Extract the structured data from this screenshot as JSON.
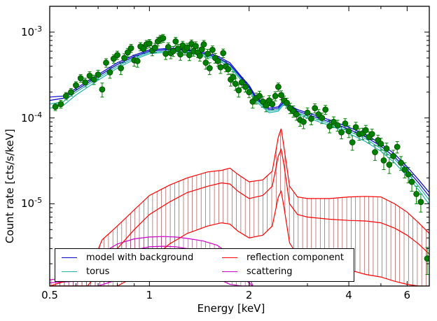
{
  "chart_data": {
    "type": "line",
    "xlabel": "Energy [keV]",
    "ylabel": "Count rate [cts/s/keV]",
    "xscale": "log",
    "yscale": "log",
    "xlim": [
      0.5,
      7.0
    ],
    "ylim": [
      1.1e-06,
      0.002
    ],
    "xticks": [
      0.5,
      1,
      2,
      4,
      6
    ],
    "xtick_labels": [
      "0.5",
      "1",
      "2",
      "4",
      "6"
    ],
    "yticks": [
      1e-05,
      0.0001,
      0.001
    ],
    "ytick_labels": [
      "10-5",
      "10-4",
      "10-3"
    ],
    "grid": false,
    "legend_position": "bottom-left",
    "series": [
      {
        "name": "model with background",
        "color": "#0000cc",
        "x": [
          0.5,
          0.55,
          0.6,
          0.7,
          0.8,
          0.9,
          1.0,
          1.1,
          1.2,
          1.4,
          1.6,
          1.75,
          1.9,
          2.0,
          2.1,
          2.3,
          2.45,
          2.55,
          2.65,
          2.8,
          3.0,
          3.5,
          4.0,
          4.5,
          5.0,
          5.5,
          6.0,
          6.5,
          7.0
        ],
        "bands": [
          [
            0.000175,
            0.00018,
            0.00022,
            0.00032,
            0.00044,
            0.00054,
            0.00062,
            0.00064,
            0.00065,
            0.00061,
            0.00053,
            0.00044,
            0.0003,
            0.00024,
            0.000175,
            0.00013,
            0.000135,
            0.000165,
            0.00014,
            0.000125,
            0.000115,
            9.5e-05,
            7.8e-05,
            6.4e-05,
            5e-05,
            3.8e-05,
            2.7e-05,
            1.9e-05,
            1.35e-05
          ],
          [
            0.00016,
            0.00017,
            0.00021,
            0.000305,
            0.00042,
            0.00052,
            0.0006,
            0.00062,
            0.00063,
            0.00059,
            0.00051,
            0.00042,
            0.00029,
            0.00023,
            0.000168,
            0.000125,
            0.00013,
            0.000155,
            0.000133,
            0.00012,
            0.00011,
            9e-05,
            7.4e-05,
            6e-05,
            4.7e-05,
            3.5e-05,
            2.5e-05,
            1.75e-05,
            1.22e-05
          ]
        ]
      },
      {
        "name": "torus",
        "color": "#20b2aa",
        "x": [
          0.5,
          0.55,
          0.6,
          0.7,
          0.8,
          0.9,
          1.0,
          1.1,
          1.2,
          1.4,
          1.6,
          1.75,
          1.9,
          2.0,
          2.1,
          2.3,
          2.45,
          2.55,
          2.65,
          2.8,
          3.0,
          3.5,
          4.0,
          4.5,
          5.0,
          5.5,
          6.0,
          6.5,
          7.0
        ],
        "bands": [
          [
            0.000145,
            0.000155,
            0.0002,
            0.00029,
            0.0004,
            0.0005,
            0.00058,
            0.0006,
            0.00061,
            0.00057,
            0.0005,
            0.00041,
            0.00028,
            0.00022,
            0.000162,
            0.00012,
            0.000125,
            0.00015,
            0.000128,
            0.000115,
            0.000105,
            8.6e-05,
            7e-05,
            5.7e-05,
            4.4e-05,
            3.3e-05,
            2.3e-05,
            1.6e-05,
            1.1e-05
          ],
          [
            0.00013,
            0.00014,
            0.000185,
            0.000275,
            0.00038,
            0.00048,
            0.00056,
            0.00058,
            0.00059,
            0.00055,
            0.00048,
            0.00039,
            0.00027,
            0.00021,
            0.000155,
            0.000115,
            0.00012,
            0.000145,
            0.000122,
            0.00011,
            0.0001,
            8.2e-05,
            6.6e-05,
            5.3e-05,
            4.1e-05,
            3e-05,
            2.1e-05,
            1.45e-05,
            9.8e-06
          ]
        ]
      },
      {
        "name": "reflection component",
        "color": "#ff0000",
        "x": [
          0.5,
          0.65,
          0.72,
          0.8,
          0.9,
          1.0,
          1.15,
          1.3,
          1.5,
          1.65,
          1.75,
          1.85,
          2.0,
          2.2,
          2.35,
          2.45,
          2.5,
          2.55,
          2.65,
          2.8,
          3.0,
          3.5,
          4.0,
          4.5,
          5.0,
          5.5,
          6.0,
          6.5,
          7.0
        ],
        "bands": [
          [
            1.1e-06,
            1.5e-06,
            3.8e-06,
            5.5e-06,
            8.5e-06,
            1.25e-05,
            1.65e-05,
            2e-05,
            2.35e-05,
            2.45e-05,
            2.6e-05,
            2.2e-05,
            1.8e-05,
            1.9e-05,
            2.4e-05,
            6e-05,
            7.5e-05,
            4.5e-05,
            1.6e-05,
            1.2e-05,
            1.15e-05,
            1.15e-05,
            1.2e-05,
            1.22e-05,
            1.2e-05,
            1e-05,
            8e-06,
            6e-06,
            4.5e-06
          ],
          [
            1.1e-06,
            1.1e-06,
            1.8e-06,
            3e-06,
            5e-06,
            7.5e-06,
            1.05e-05,
            1.35e-05,
            1.6e-05,
            1.75e-05,
            1.7e-05,
            1.4e-05,
            1.15e-05,
            1.25e-05,
            1.6e-05,
            3.6e-05,
            4.3e-05,
            2.8e-05,
            1e-05,
            7.5e-06,
            7e-06,
            6.6e-06,
            6.4e-06,
            6.3e-06,
            6e-06,
            5.2e-06,
            4.3e-06,
            3.4e-06,
            2.6e-06
          ],
          [
            1.1e-06,
            1.1e-06,
            1.1e-06,
            1.1e-06,
            1.4e-06,
            2.2e-06,
            3.4e-06,
            4.5e-06,
            5.5e-06,
            6e-06,
            5.8e-06,
            4.8e-06,
            4e-06,
            4.3e-06,
            5.5e-06,
            1.2e-05,
            1.4e-05,
            9e-06,
            3.5e-06,
            2.5e-06,
            2.2e-06,
            1.9e-06,
            1.7e-06,
            1.5e-06,
            1.4e-06,
            1.25e-06,
            1.15e-06,
            1.1e-06,
            1.1e-06
          ]
        ]
      },
      {
        "name": "scattering",
        "color": "#cc00cc",
        "x": [
          0.5,
          0.6,
          0.7,
          0.8,
          0.9,
          1.0,
          1.1,
          1.2,
          1.3,
          1.45,
          1.6,
          1.75,
          1.9,
          2.0,
          2.05
        ],
        "bands": [
          [
            1.3e-06,
            1.4e-06,
            2.5e-06,
            3.4e-06,
            3.9e-06,
            4.1e-06,
            4.15e-06,
            4.1e-06,
            3.95e-06,
            3.7e-06,
            3.3e-06,
            2.6e-06,
            1.9e-06,
            1.5e-06,
            1.1e-06
          ],
          [
            1.2e-06,
            1.25e-06,
            1.7e-06,
            2.4e-06,
            2.9e-06,
            3.15e-06,
            3.2e-06,
            3.15e-06,
            3e-06,
            2.8e-06,
            2.4e-06,
            1.9e-06,
            1.4e-06,
            1.2e-06,
            1.1e-06
          ],
          [
            1.1e-06,
            1.1e-06,
            1.1e-06,
            1.3e-06,
            1.6e-06,
            1.9e-06,
            2e-06,
            1.95e-06,
            1.85e-06,
            1.6e-06,
            1.35e-06,
            1.15e-06,
            1.1e-06,
            1.1e-06,
            1.1e-06
          ]
        ]
      }
    ],
    "data_points": {
      "color": "#008000",
      "points": [
        [
          0.52,
          0.000135,
          1.3e-05
        ],
        [
          0.54,
          0.000145,
          1.5e-05
        ],
        [
          0.56,
          0.00018,
          1.8e-05
        ],
        [
          0.58,
          0.0002,
          2e-05
        ],
        [
          0.6,
          0.00024,
          2.4e-05
        ],
        [
          0.62,
          0.00029,
          3e-05
        ],
        [
          0.64,
          0.00026,
          3e-05
        ],
        [
          0.66,
          0.00031,
          3.5e-05
        ],
        [
          0.68,
          0.00028,
          3.5e-05
        ],
        [
          0.7,
          0.00032,
          4e-05
        ],
        [
          0.72,
          0.000215,
          4e-05
        ],
        [
          0.74,
          0.00044,
          5e-05
        ],
        [
          0.76,
          0.00034,
          5e-05
        ],
        [
          0.78,
          0.00049,
          5.5e-05
        ],
        [
          0.8,
          0.00054,
          6e-05
        ],
        [
          0.82,
          0.00038,
          6e-05
        ],
        [
          0.84,
          0.0005,
          6e-05
        ],
        [
          0.86,
          0.00058,
          6.5e-05
        ],
        [
          0.88,
          0.00065,
          7e-05
        ],
        [
          0.9,
          0.00047,
          7e-05
        ],
        [
          0.92,
          0.00046,
          7e-05
        ],
        [
          0.94,
          0.00068,
          7.5e-05
        ],
        [
          0.96,
          0.00064,
          7.5e-05
        ],
        [
          0.98,
          0.00072,
          8e-05
        ],
        [
          1.0,
          0.00074,
          8e-05
        ],
        [
          1.02,
          0.00061,
          8e-05
        ],
        [
          1.04,
          0.00066,
          8e-05
        ],
        [
          1.06,
          0.00078,
          9e-05
        ],
        [
          1.08,
          0.00083,
          9e-05
        ],
        [
          1.1,
          0.00085,
          9e-05
        ],
        [
          1.12,
          0.00056,
          8e-05
        ],
        [
          1.14,
          0.00067,
          8e-05
        ],
        [
          1.16,
          0.00057,
          8e-05
        ],
        [
          1.18,
          0.0006,
          8e-05
        ],
        [
          1.2,
          0.00078,
          9e-05
        ],
        [
          1.22,
          0.00064,
          8e-05
        ],
        [
          1.24,
          0.00055,
          8e-05
        ],
        [
          1.26,
          0.0007,
          8e-05
        ],
        [
          1.28,
          0.00062,
          8e-05
        ],
        [
          1.3,
          0.00066,
          8e-05
        ],
        [
          1.32,
          0.00054,
          7.5e-05
        ],
        [
          1.34,
          0.00073,
          8e-05
        ],
        [
          1.36,
          0.0006,
          7.5e-05
        ],
        [
          1.38,
          0.00069,
          8e-05
        ],
        [
          1.4,
          0.00058,
          7.5e-05
        ],
        [
          1.42,
          0.00053,
          7e-05
        ],
        [
          1.44,
          0.00063,
          7.5e-05
        ],
        [
          1.46,
          0.00072,
          8e-05
        ],
        [
          1.48,
          0.00044,
          7e-05
        ],
        [
          1.5,
          0.00056,
          7e-05
        ],
        [
          1.52,
          0.00038,
          6e-05
        ],
        [
          1.55,
          0.00062,
          7e-05
        ],
        [
          1.58,
          0.0005,
          6.5e-05
        ],
        [
          1.61,
          0.00046,
          6e-05
        ],
        [
          1.64,
          0.00039,
          6e-05
        ],
        [
          1.67,
          0.00057,
          6.5e-05
        ],
        [
          1.7,
          0.0004,
          5.5e-05
        ],
        [
          1.73,
          0.00037,
          5e-05
        ],
        [
          1.76,
          0.00028,
          4.5e-05
        ],
        [
          1.79,
          0.0003,
          4.5e-05
        ],
        [
          1.82,
          0.00025,
          4e-05
        ],
        [
          1.86,
          0.00021,
          3.5e-05
        ],
        [
          1.9,
          0.00026,
          3.5e-05
        ],
        [
          1.95,
          0.00023,
          3e-05
        ],
        [
          2.0,
          0.0002,
          2.8e-05
        ],
        [
          2.05,
          0.000155,
          2.5e-05
        ],
        [
          2.1,
          0.00017,
          2.5e-05
        ],
        [
          2.15,
          0.00018,
          2.5e-05
        ],
        [
          2.2,
          0.000155,
          2.2e-05
        ],
        [
          2.25,
          0.00014,
          2.2e-05
        ],
        [
          2.3,
          0.00016,
          2.2e-05
        ],
        [
          2.35,
          0.000145,
          2e-05
        ],
        [
          2.4,
          0.00018,
          2.2e-05
        ],
        [
          2.45,
          0.00023,
          2.5e-05
        ],
        [
          2.5,
          0.000185,
          2.2e-05
        ],
        [
          2.55,
          0.00016,
          2e-05
        ],
        [
          2.6,
          0.00015,
          2e-05
        ],
        [
          2.66,
          0.00013,
          1.8e-05
        ],
        [
          2.72,
          0.00012,
          1.8e-05
        ],
        [
          2.78,
          0.00011,
          1.6e-05
        ],
        [
          2.85,
          9.5e-05,
          1.5e-05
        ],
        [
          2.92,
          9e-05,
          1.5e-05
        ],
        [
          3.0,
          0.000115,
          1.6e-05
        ],
        [
          3.08,
          9.8e-05,
          1.5e-05
        ],
        [
          3.16,
          0.00013,
          1.6e-05
        ],
        [
          3.24,
          0.00011,
          1.5e-05
        ],
        [
          3.32,
          0.0001,
          1.4e-05
        ],
        [
          3.4,
          0.000125,
          1.5e-05
        ],
        [
          3.5,
          8e-05,
          1.3e-05
        ],
        [
          3.6,
          9e-05,
          1.3e-05
        ],
        [
          3.7,
          8.2e-05,
          1.2e-05
        ],
        [
          3.8,
          6.8e-05,
          1.1e-05
        ],
        [
          3.9,
          8.6e-05,
          1.2e-05
        ],
        [
          4.0,
          7e-05,
          1.1e-05
        ],
        [
          4.1,
          5.2e-05,
          1e-05
        ],
        [
          4.2,
          7.8e-05,
          1.1e-05
        ],
        [
          4.3,
          6.5e-05,
          1e-05
        ],
        [
          4.4,
          6.6e-05,
          1e-05
        ],
        [
          4.5,
          7.2e-05,
          1e-05
        ],
        [
          4.6,
          6e-05,
          9e-06
        ],
        [
          4.7,
          6.5e-05,
          9e-06
        ],
        [
          4.8,
          4e-05,
          8e-06
        ],
        [
          4.9,
          5.5e-05,
          8e-06
        ],
        [
          5.0,
          5e-05,
          8e-06
        ],
        [
          5.1,
          3.2e-05,
          7e-06
        ],
        [
          5.2,
          4.4e-05,
          7e-06
        ],
        [
          5.3,
          2.85e-05,
          6e-06
        ],
        [
          5.45,
          3.6e-05,
          6e-06
        ],
        [
          5.6,
          4.6e-05,
          7e-06
        ],
        [
          5.75,
          3e-05,
          5.5e-06
        ],
        [
          5.9,
          2.5e-05,
          5e-06
        ],
        [
          6.05,
          2.2e-05,
          4.5e-06
        ],
        [
          6.2,
          1.8e-05,
          4e-06
        ],
        [
          6.4,
          1.3e-05,
          3e-06
        ],
        [
          6.6,
          1.05e-05,
          2.5e-06
        ],
        [
          6.9,
          2.3e-06,
          8e-07
        ]
      ]
    }
  }
}
